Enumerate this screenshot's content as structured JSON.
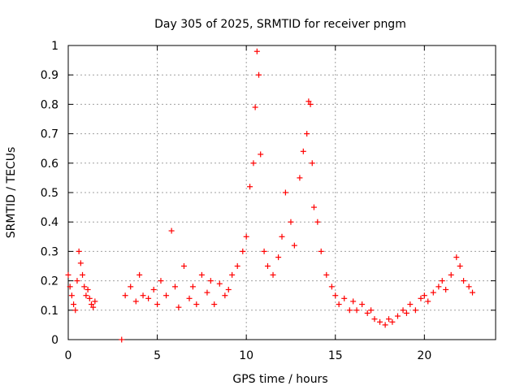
{
  "chart_data": {
    "type": "scatter",
    "title": "Day 305 of 2025, SRMTID for receiver pngm",
    "xlabel": "GPS time / hours",
    "ylabel": "SRMTID / TECUs",
    "xlim": [
      0,
      24
    ],
    "ylim": [
      0,
      1
    ],
    "xticks": [
      "0",
      "5",
      "10",
      "15",
      "20"
    ],
    "yticks": [
      "0",
      "0.1",
      "0.2",
      "0.3",
      "0.4",
      "0.5",
      "0.6",
      "0.7",
      "0.8",
      "0.9",
      "1"
    ],
    "grid": true,
    "marker": "+",
    "marker_color": "#ff0000",
    "series": [
      {
        "name": "SRMTID",
        "x": [
          0.0,
          0.1,
          0.2,
          0.3,
          0.4,
          0.5,
          0.6,
          0.7,
          0.8,
          0.9,
          1.0,
          1.1,
          1.2,
          1.3,
          1.4,
          1.5,
          3.0,
          3.2,
          3.5,
          3.8,
          4.0,
          4.2,
          4.5,
          4.8,
          5.0,
          5.2,
          5.5,
          5.8,
          6.0,
          6.2,
          6.5,
          6.8,
          7.0,
          7.2,
          7.5,
          7.8,
          8.0,
          8.2,
          8.5,
          8.8,
          9.0,
          9.2,
          9.5,
          9.8,
          10.0,
          10.2,
          10.4,
          10.5,
          10.6,
          10.7,
          10.8,
          11.0,
          11.2,
          11.5,
          11.8,
          12.0,
          12.2,
          12.5,
          12.7,
          13.0,
          13.2,
          13.4,
          13.5,
          13.6,
          13.7,
          13.8,
          14.0,
          14.2,
          14.5,
          14.8,
          15.0,
          15.2,
          15.5,
          15.8,
          16.0,
          16.2,
          16.5,
          16.8,
          17.0,
          17.2,
          17.5,
          17.8,
          18.0,
          18.2,
          18.5,
          18.8,
          19.0,
          19.2,
          19.5,
          19.8,
          20.0,
          20.2,
          20.5,
          20.8,
          21.0,
          21.2,
          21.5,
          21.8,
          22.0,
          22.2,
          22.5,
          22.7
        ],
        "y": [
          0.22,
          0.18,
          0.15,
          0.12,
          0.1,
          0.2,
          0.3,
          0.26,
          0.22,
          0.18,
          0.15,
          0.17,
          0.14,
          0.12,
          0.11,
          0.13,
          0.0,
          0.15,
          0.18,
          0.13,
          0.22,
          0.15,
          0.14,
          0.17,
          0.12,
          0.2,
          0.15,
          0.37,
          0.18,
          0.11,
          0.25,
          0.14,
          0.18,
          0.12,
          0.22,
          0.16,
          0.2,
          0.12,
          0.19,
          0.15,
          0.17,
          0.22,
          0.25,
          0.3,
          0.35,
          0.52,
          0.6,
          0.79,
          0.98,
          0.9,
          0.63,
          0.3,
          0.25,
          0.22,
          0.28,
          0.35,
          0.5,
          0.4,
          0.32,
          0.55,
          0.64,
          0.7,
          0.81,
          0.8,
          0.6,
          0.45,
          0.4,
          0.3,
          0.22,
          0.18,
          0.15,
          0.12,
          0.14,
          0.1,
          0.13,
          0.1,
          0.12,
          0.09,
          0.1,
          0.07,
          0.06,
          0.05,
          0.07,
          0.06,
          0.08,
          0.1,
          0.09,
          0.12,
          0.1,
          0.14,
          0.15,
          0.13,
          0.16,
          0.18,
          0.2,
          0.17,
          0.22,
          0.28,
          0.25,
          0.2,
          0.18,
          0.16
        ]
      }
    ]
  }
}
